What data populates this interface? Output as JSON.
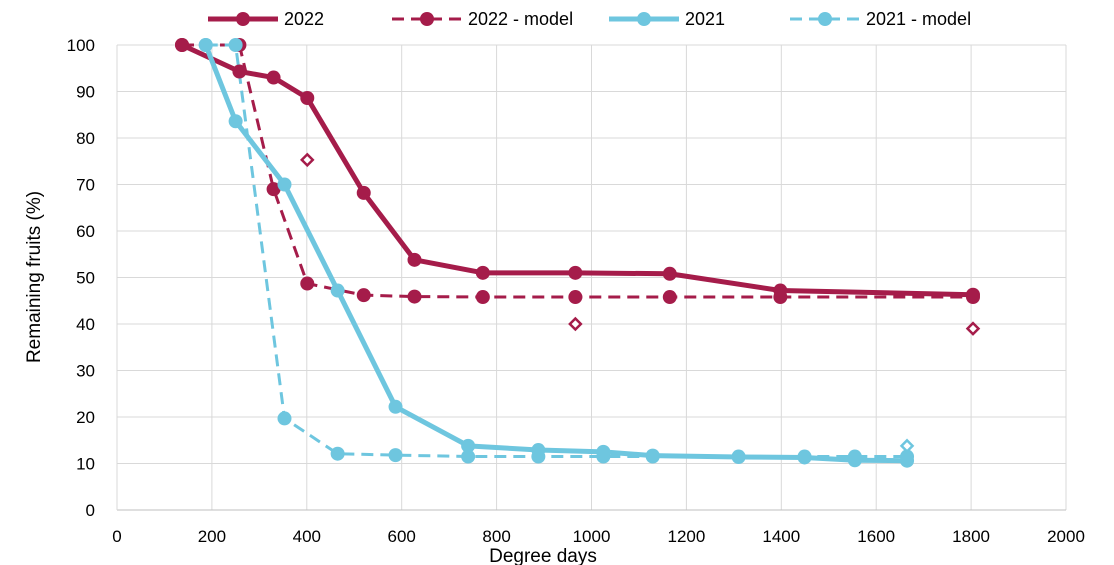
{
  "chart_data": {
    "type": "line",
    "title": "",
    "xlabel": "Degree days",
    "ylabel": "Remaining fruits (%)",
    "xlim": [
      0,
      2000
    ],
    "ylim": [
      0,
      100
    ],
    "x_ticks": [
      0,
      200,
      400,
      600,
      800,
      1000,
      1200,
      1400,
      1600,
      1800,
      2000
    ],
    "y_ticks": [
      0,
      10,
      20,
      30,
      40,
      50,
      60,
      70,
      80,
      90,
      100
    ],
    "grid": true,
    "legend_position": "top",
    "series": [
      {
        "name": "2022",
        "style": "solid",
        "color": "#A51C4A",
        "points": [
          [
            137,
            100
          ],
          [
            258,
            94.3
          ],
          [
            330,
            93
          ],
          [
            401,
            88.6
          ],
          [
            520,
            68.2
          ],
          [
            627,
            53.8
          ],
          [
            771,
            51
          ],
          [
            966,
            51
          ],
          [
            1165,
            50.8
          ],
          [
            1398,
            47.2
          ],
          [
            1804,
            46.3
          ]
        ]
      },
      {
        "name": "2022 - model",
        "style": "dashed",
        "color": "#A51C4A",
        "points": [
          [
            137,
            100
          ],
          [
            258,
            100
          ],
          [
            330,
            69
          ],
          [
            401,
            48.7
          ],
          [
            520,
            46.2
          ],
          [
            627,
            45.9
          ],
          [
            771,
            45.8
          ],
          [
            966,
            45.8
          ],
          [
            1165,
            45.8
          ],
          [
            1398,
            45.8
          ],
          [
            1804,
            45.8
          ]
        ]
      },
      {
        "name": "2021",
        "style": "solid",
        "color": "#6EC6DF",
        "points": [
          [
            187,
            100
          ],
          [
            250,
            83.6
          ],
          [
            353,
            70
          ],
          [
            465,
            47.2
          ],
          [
            587,
            22.2
          ],
          [
            740,
            13.8
          ],
          [
            888,
            12.9
          ],
          [
            1025,
            12.5
          ],
          [
            1129,
            11.7
          ],
          [
            1310,
            11.4
          ],
          [
            1449,
            11.3
          ],
          [
            1555,
            10.7
          ],
          [
            1665,
            10.6
          ]
        ]
      },
      {
        "name": "2021 - model",
        "style": "dashed",
        "color": "#6EC6DF",
        "points": [
          [
            187,
            100
          ],
          [
            250,
            100
          ],
          [
            353,
            19.7
          ],
          [
            465,
            12.1
          ],
          [
            587,
            11.8
          ],
          [
            740,
            11.5
          ],
          [
            888,
            11.5
          ],
          [
            1025,
            11.5
          ],
          [
            1129,
            11.5
          ],
          [
            1310,
            11.5
          ],
          [
            1449,
            11.5
          ],
          [
            1555,
            11.5
          ],
          [
            1665,
            11.5
          ]
        ]
      }
    ],
    "extra_markers": [
      {
        "color": "#A51C4A",
        "shape": "diamond-open",
        "points": [
          [
            401,
            75.3
          ],
          [
            966,
            40
          ],
          [
            1804,
            39
          ]
        ]
      },
      {
        "color": "#6EC6DF",
        "shape": "diamond-open",
        "points": [
          [
            1665,
            13.8
          ]
        ]
      }
    ]
  }
}
